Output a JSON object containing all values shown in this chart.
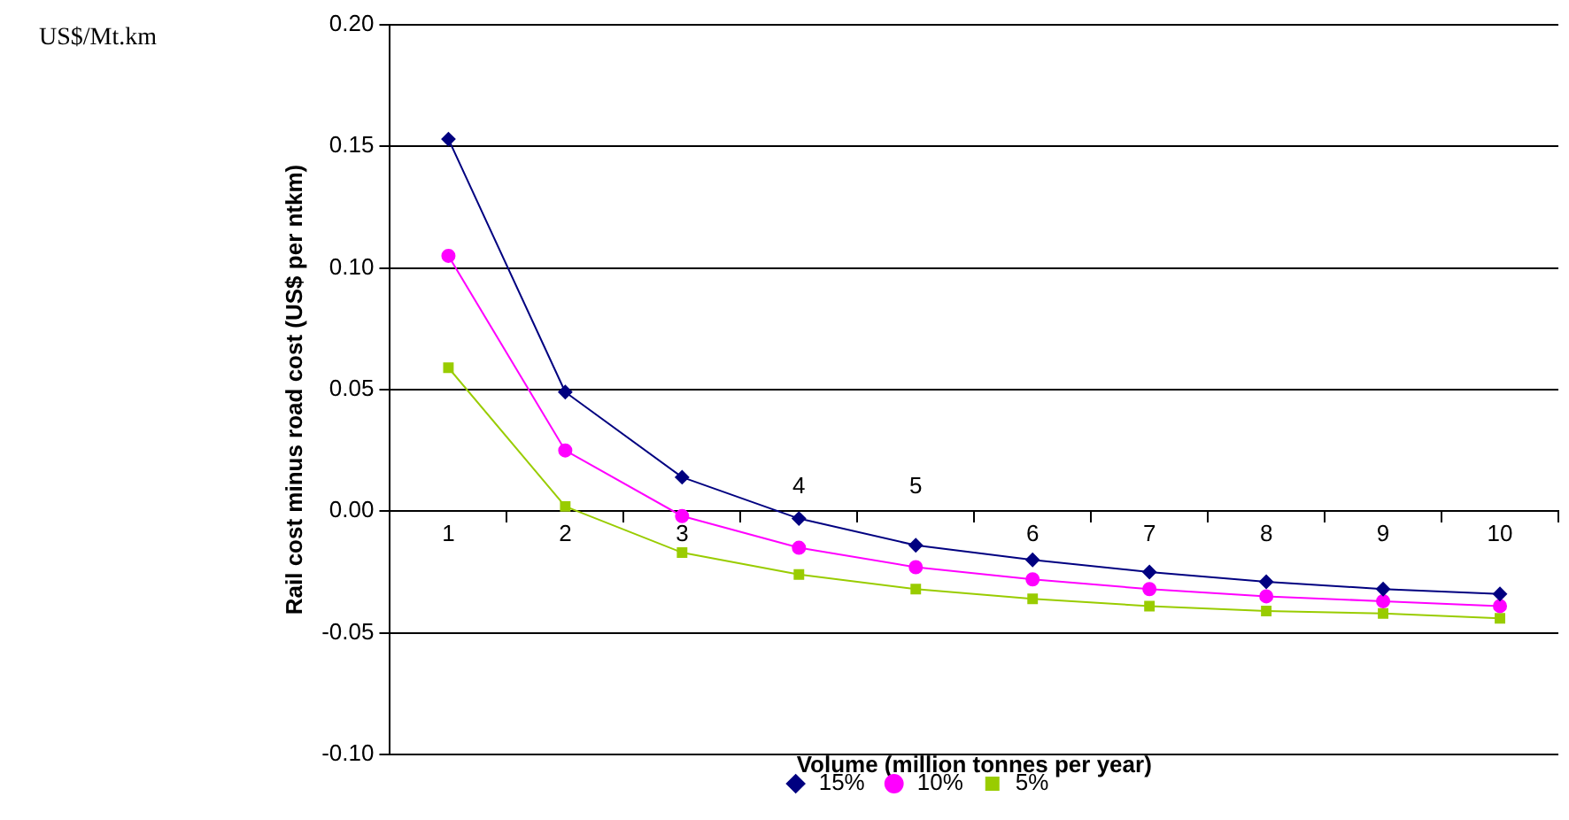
{
  "chart_data": {
    "type": "line",
    "xlabel": "Volume (million tonnes per year)",
    "ylabel": "Rail cost minus road cost (US$ per ntkm)",
    "annotations": [
      "US$/Mt.km"
    ],
    "categories": [
      "1",
      "2",
      "3",
      "4",
      "5",
      "6",
      "7",
      "8",
      "9",
      "10"
    ],
    "series": [
      {
        "name": "15%",
        "color": "#000080",
        "marker": "diamond",
        "values": [
          0.153,
          0.049,
          0.014,
          -0.003,
          -0.014,
          -0.02,
          -0.025,
          -0.029,
          -0.032,
          -0.034
        ]
      },
      {
        "name": "10%",
        "color": "#ff00ff",
        "marker": "circle",
        "values": [
          0.105,
          0.025,
          -0.002,
          -0.015,
          -0.023,
          -0.028,
          -0.032,
          -0.035,
          -0.037,
          -0.039
        ]
      },
      {
        "name": "5%",
        "color": "#99cc00",
        "marker": "square",
        "values": [
          0.059,
          0.002,
          -0.017,
          -0.026,
          -0.032,
          -0.036,
          -0.039,
          -0.041,
          -0.042,
          -0.044
        ]
      }
    ],
    "ylim": [
      -0.1,
      0.2
    ],
    "yticks": [
      {
        "value": -0.1,
        "label": "-0.10"
      },
      {
        "value": -0.05,
        "label": "-0.05"
      },
      {
        "value": 0,
        "label": "0.00"
      },
      {
        "value": 0.05,
        "label": "0.05"
      },
      {
        "value": 0.1,
        "label": "0.10"
      },
      {
        "value": 0.15,
        "label": "0.15"
      },
      {
        "value": 0.2,
        "label": "0.20"
      }
    ],
    "grid": "y",
    "legend": "bottom"
  }
}
